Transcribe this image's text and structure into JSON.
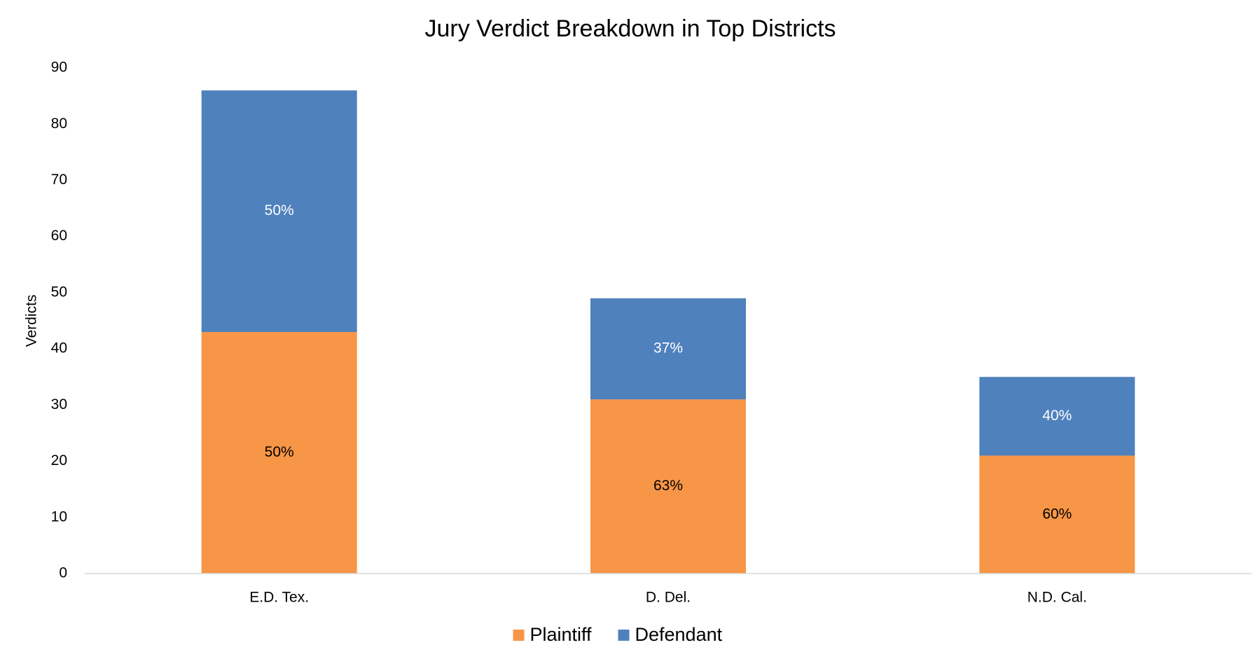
{
  "chart_data": {
    "type": "stacked-bar",
    "title": "Jury Verdict Breakdown in Top Districts",
    "y_label": "Verdicts",
    "categories": [
      "E.D. Tex.",
      "D. Del.",
      "N.D. Cal."
    ],
    "series": [
      {
        "name": "Plaintiff",
        "color": "#f79646",
        "values": [
          43,
          31,
          21
        ],
        "data_labels": [
          "50%",
          "63%",
          "60%"
        ],
        "label_color": "#000000"
      },
      {
        "name": "Defendant",
        "color": "#4f81bd",
        "values": [
          43,
          18,
          14
        ],
        "data_labels": [
          "50%",
          "37%",
          "40%"
        ],
        "label_color": "#ffffff"
      }
    ],
    "ylim": [
      0,
      90
    ],
    "yticks": [
      0,
      10,
      20,
      30,
      40,
      50,
      60,
      70,
      80,
      90
    ],
    "grid": false,
    "legend": "bottom"
  }
}
